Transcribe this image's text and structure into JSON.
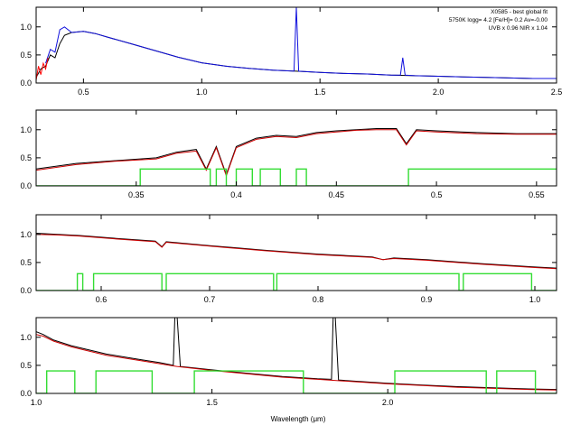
{
  "figure": {
    "annotation_lines": [
      "X0585 - best global fit",
      "5750K logg= 4.2 [Fe/H]= 0.2 Av=-0.00",
      "UVB x 0.96  NIR x 1.04"
    ],
    "xlabel": "Wavelength (μm)"
  },
  "colors": {
    "observed": "#000000",
    "model": "#cc0000",
    "nir_spectrum": "#1010dd",
    "uvb_edge": "#ff0000",
    "mask": "#33dd33"
  },
  "chart_data": [
    {
      "type": "line",
      "panel": "overview",
      "xlim": [
        0.3,
        2.5
      ],
      "ylim": [
        0.0,
        1.35
      ],
      "xticks": [
        0.5,
        1.0,
        1.5,
        2.0,
        2.5
      ],
      "yticks": [
        0.0,
        0.5,
        1.0
      ],
      "series": [
        {
          "role": "observed",
          "x": [
            0.3,
            0.32,
            0.34,
            0.36,
            0.38,
            0.4,
            0.42,
            0.45,
            0.5,
            0.55,
            0.6,
            0.7,
            0.8,
            0.9,
            1.0,
            1.1,
            1.2,
            1.3,
            1.4,
            1.5,
            1.6,
            1.7,
            1.8,
            1.9,
            2.0,
            2.1,
            2.2,
            2.3,
            2.4,
            2.5
          ],
          "y": [
            0.1,
            0.25,
            0.3,
            0.5,
            0.45,
            0.7,
            0.85,
            0.9,
            0.92,
            0.88,
            0.82,
            0.7,
            0.58,
            0.46,
            0.36,
            0.3,
            0.26,
            0.23,
            0.21,
            0.19,
            0.17,
            0.16,
            0.14,
            0.13,
            0.12,
            0.11,
            0.1,
            0.09,
            0.08,
            0.08
          ]
        },
        {
          "role": "nir_spectrum",
          "x": [
            0.34,
            0.36,
            0.38,
            0.4,
            0.42,
            0.45,
            0.5,
            0.55,
            0.6,
            0.7,
            0.8,
            0.9,
            1.0,
            1.1,
            1.2,
            1.3,
            1.39,
            1.4,
            1.41,
            1.5,
            1.6,
            1.7,
            1.8,
            1.84,
            1.85,
            1.86,
            1.9,
            2.0,
            2.1,
            2.2,
            2.3,
            2.4,
            2.5
          ],
          "y": [
            0.35,
            0.6,
            0.55,
            0.95,
            1.0,
            0.9,
            0.92,
            0.88,
            0.82,
            0.7,
            0.58,
            0.46,
            0.36,
            0.3,
            0.26,
            0.23,
            0.21,
            1.35,
            0.21,
            0.19,
            0.17,
            0.16,
            0.14,
            0.14,
            0.45,
            0.14,
            0.13,
            0.12,
            0.11,
            0.1,
            0.09,
            0.08,
            0.08
          ]
        },
        {
          "role": "uvb_edge",
          "x": [
            0.3,
            0.31,
            0.32,
            0.33,
            0.34,
            0.35
          ],
          "y": [
            0.05,
            0.3,
            0.15,
            0.35,
            0.25,
            0.45
          ]
        }
      ]
    },
    {
      "type": "line",
      "panel": "uvb-detail",
      "xlim": [
        0.3,
        0.56
      ],
      "ylim": [
        0.0,
        1.35
      ],
      "xticks": [
        0.35,
        0.4,
        0.45,
        0.5,
        0.55
      ],
      "yticks": [
        0.0,
        0.5,
        1.0
      ],
      "series": [
        {
          "role": "observed",
          "x": [
            0.3,
            0.32,
            0.34,
            0.36,
            0.37,
            0.38,
            0.385,
            0.39,
            0.395,
            0.4,
            0.41,
            0.42,
            0.43,
            0.44,
            0.45,
            0.46,
            0.47,
            0.48,
            0.485,
            0.49,
            0.5,
            0.52,
            0.54,
            0.56
          ],
          "y": [
            0.3,
            0.4,
            0.45,
            0.5,
            0.6,
            0.65,
            0.3,
            0.7,
            0.2,
            0.7,
            0.85,
            0.9,
            0.88,
            0.95,
            0.98,
            1.0,
            1.02,
            1.02,
            0.75,
            1.0,
            0.98,
            0.95,
            0.93,
            0.93
          ]
        },
        {
          "role": "model",
          "x": [
            0.3,
            0.32,
            0.34,
            0.36,
            0.37,
            0.38,
            0.385,
            0.39,
            0.395,
            0.4,
            0.41,
            0.42,
            0.43,
            0.44,
            0.45,
            0.46,
            0.47,
            0.48,
            0.485,
            0.49,
            0.5,
            0.52,
            0.54,
            0.56
          ],
          "y": [
            0.28,
            0.38,
            0.44,
            0.48,
            0.58,
            0.62,
            0.28,
            0.68,
            0.18,
            0.68,
            0.83,
            0.88,
            0.86,
            0.93,
            0.96,
            0.99,
            1.0,
            1.0,
            0.73,
            0.98,
            0.96,
            0.93,
            0.92,
            0.92
          ]
        },
        {
          "role": "mask",
          "x": [
            0.3,
            0.352,
            0.352,
            0.387,
            0.387,
            0.39,
            0.39,
            0.395,
            0.395,
            0.4,
            0.4,
            0.408,
            0.408,
            0.412,
            0.412,
            0.422,
            0.422,
            0.43,
            0.43,
            0.435,
            0.435,
            0.486,
            0.486,
            0.56
          ],
          "y": [
            0.0,
            0.0,
            0.3,
            0.3,
            0.0,
            0.0,
            0.3,
            0.3,
            0.0,
            0.0,
            0.3,
            0.3,
            0.0,
            0.0,
            0.3,
            0.3,
            0.0,
            0.0,
            0.3,
            0.3,
            0.0,
            0.0,
            0.3,
            0.3
          ]
        }
      ]
    },
    {
      "type": "line",
      "panel": "vis-detail",
      "xlim": [
        0.54,
        1.02
      ],
      "ylim": [
        0.0,
        1.35
      ],
      "xticks": [
        0.6,
        0.7,
        0.8,
        0.9,
        1.0
      ],
      "yticks": [
        0.0,
        0.5,
        1.0
      ],
      "series": [
        {
          "role": "observed",
          "x": [
            0.54,
            0.56,
            0.58,
            0.6,
            0.62,
            0.65,
            0.656,
            0.66,
            0.7,
            0.75,
            0.8,
            0.85,
            0.86,
            0.87,
            0.9,
            0.95,
            1.0,
            1.02
          ],
          "y": [
            1.02,
            1.0,
            0.98,
            0.95,
            0.92,
            0.88,
            0.78,
            0.87,
            0.8,
            0.72,
            0.65,
            0.6,
            0.55,
            0.58,
            0.55,
            0.48,
            0.42,
            0.4
          ]
        },
        {
          "role": "model",
          "x": [
            0.54,
            0.56,
            0.58,
            0.6,
            0.62,
            0.65,
            0.656,
            0.66,
            0.7,
            0.75,
            0.8,
            0.85,
            0.86,
            0.87,
            0.9,
            0.95,
            1.0,
            1.02
          ],
          "y": [
            1.0,
            0.99,
            0.97,
            0.94,
            0.91,
            0.87,
            0.77,
            0.86,
            0.79,
            0.71,
            0.64,
            0.59,
            0.55,
            0.57,
            0.54,
            0.47,
            0.41,
            0.39
          ]
        },
        {
          "role": "mask",
          "x": [
            0.54,
            0.578,
            0.578,
            0.583,
            0.583,
            0.593,
            0.593,
            0.656,
            0.656,
            0.66,
            0.66,
            0.759,
            0.759,
            0.762,
            0.762,
            0.93,
            0.93,
            0.934,
            0.934,
            0.997,
            0.997,
            1.02
          ],
          "y": [
            0.0,
            0.0,
            0.3,
            0.3,
            0.0,
            0.0,
            0.3,
            0.3,
            0.0,
            0.0,
            0.3,
            0.3,
            0.0,
            0.0,
            0.3,
            0.3,
            0.0,
            0.0,
            0.3,
            0.3,
            0.0,
            0.0
          ]
        }
      ]
    },
    {
      "type": "line",
      "panel": "nir-detail",
      "xlim": [
        1.0,
        2.48
      ],
      "ylim": [
        0.0,
        1.35
      ],
      "xticks": [
        1.0,
        1.5,
        2.0
      ],
      "yticks": [
        0.0,
        0.5,
        1.0
      ],
      "series": [
        {
          "role": "observed",
          "x": [
            1.0,
            1.02,
            1.05,
            1.1,
            1.2,
            1.3,
            1.35,
            1.39,
            1.395,
            1.4,
            1.41,
            1.5,
            1.6,
            1.7,
            1.8,
            1.84,
            1.845,
            1.85,
            1.86,
            1.9,
            2.0,
            2.1,
            2.2,
            2.3,
            2.4,
            2.48
          ],
          "y": [
            1.1,
            1.05,
            0.95,
            0.85,
            0.7,
            0.6,
            0.55,
            0.5,
            1.45,
            1.45,
            0.48,
            0.42,
            0.36,
            0.3,
            0.26,
            0.25,
            1.45,
            1.45,
            0.24,
            0.22,
            0.18,
            0.15,
            0.12,
            0.1,
            0.08,
            0.07
          ]
        },
        {
          "role": "model",
          "x": [
            1.0,
            1.02,
            1.05,
            1.1,
            1.2,
            1.3,
            1.35,
            1.4,
            1.5,
            1.6,
            1.7,
            1.8,
            1.9,
            2.0,
            2.1,
            2.2,
            2.3,
            2.4,
            2.48
          ],
          "y": [
            1.05,
            1.02,
            0.93,
            0.83,
            0.68,
            0.58,
            0.53,
            0.48,
            0.41,
            0.35,
            0.29,
            0.25,
            0.21,
            0.17,
            0.14,
            0.11,
            0.09,
            0.07,
            0.06
          ]
        },
        {
          "role": "mask",
          "x": [
            1.0,
            1.03,
            1.03,
            1.11,
            1.11,
            1.17,
            1.17,
            1.33,
            1.33,
            1.45,
            1.45,
            1.76,
            1.76,
            2.02,
            2.02,
            2.28,
            2.28,
            2.31,
            2.31,
            2.42,
            2.42,
            2.48
          ],
          "y": [
            0.0,
            0.0,
            0.4,
            0.4,
            0.0,
            0.0,
            0.4,
            0.4,
            0.0,
            0.0,
            0.4,
            0.4,
            0.0,
            0.0,
            0.4,
            0.4,
            0.0,
            0.0,
            0.4,
            0.4,
            0.0,
            0.0
          ]
        }
      ]
    }
  ]
}
